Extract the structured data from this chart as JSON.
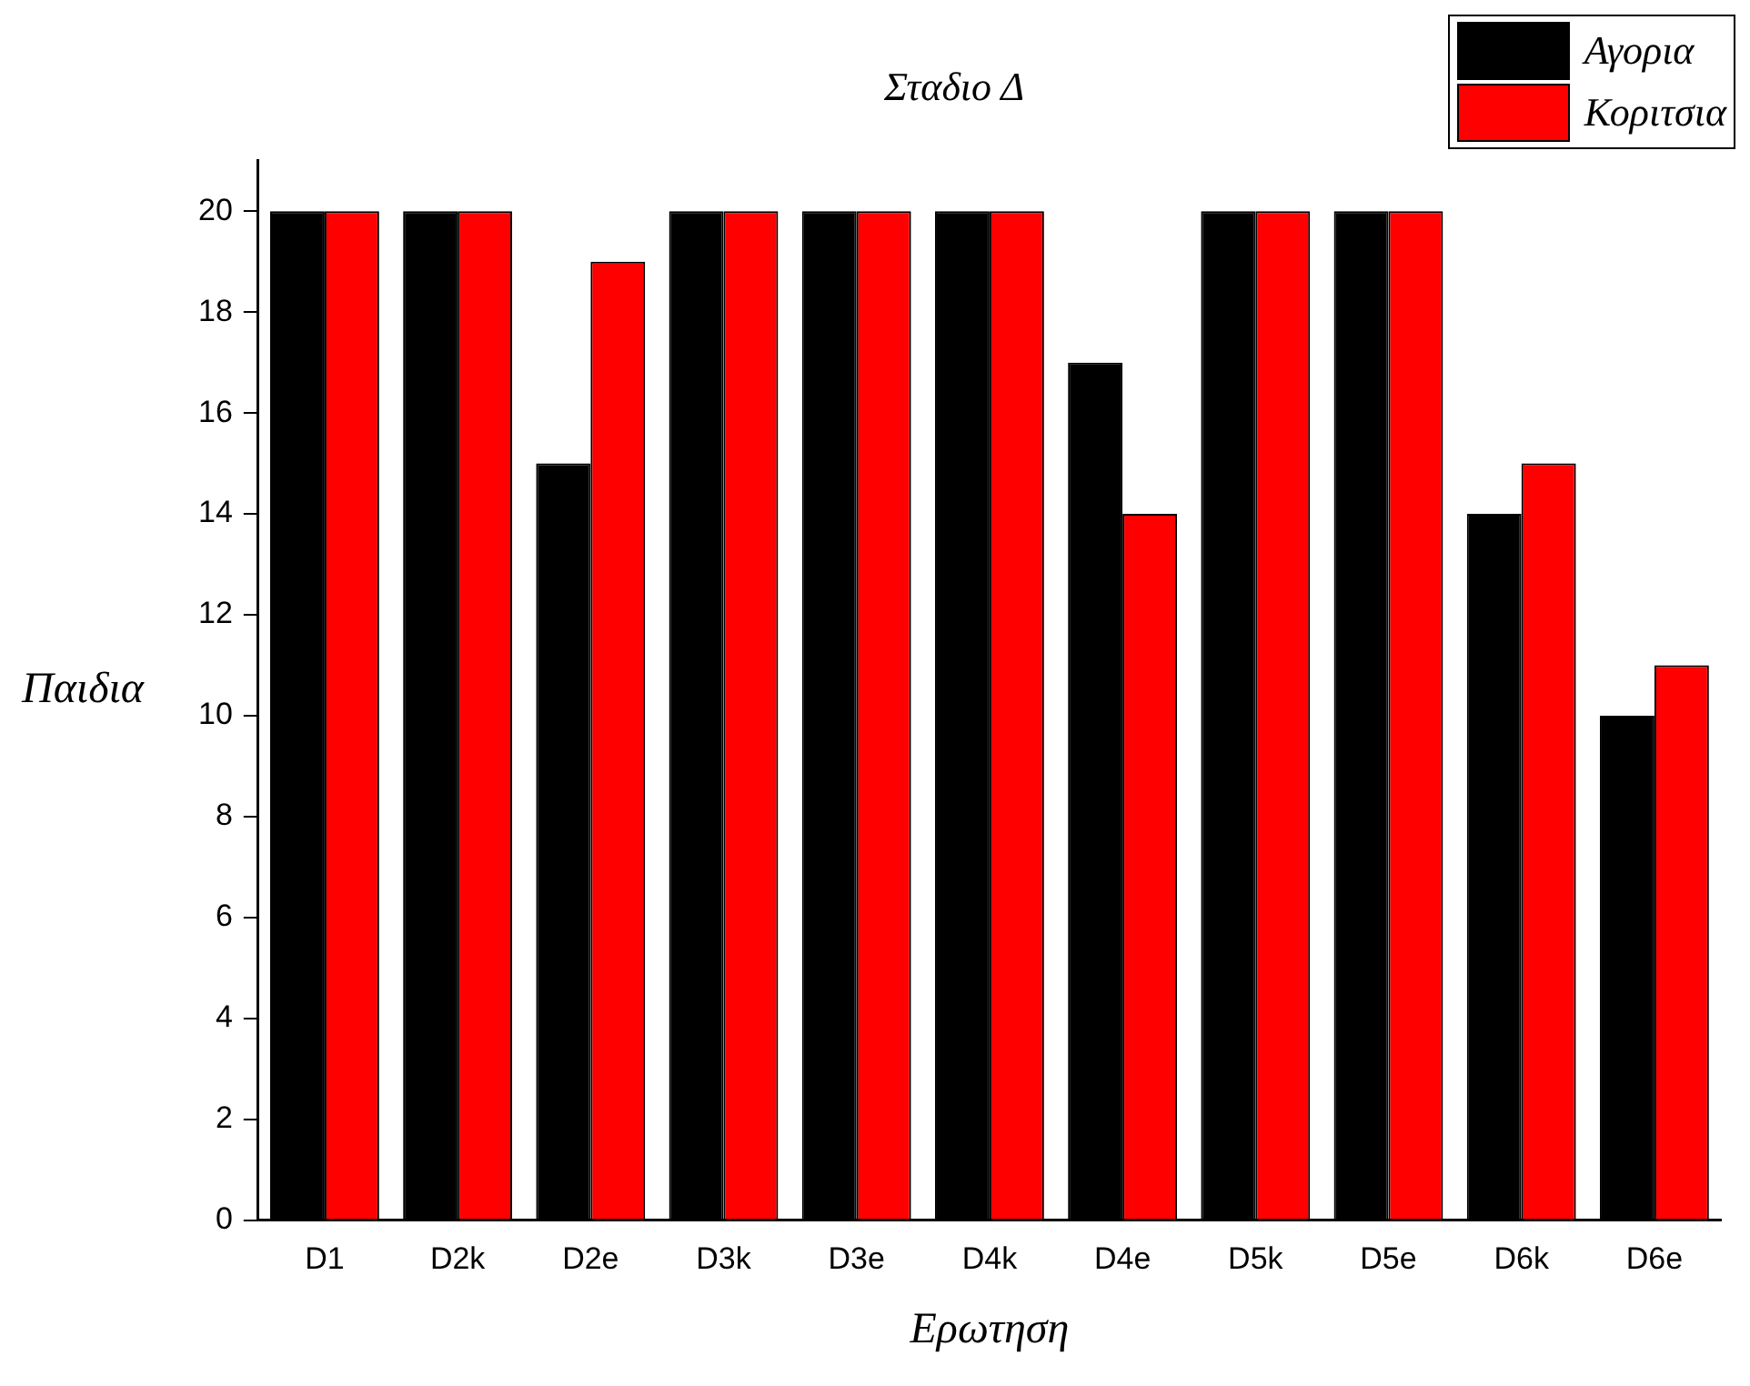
{
  "chart_data": {
    "type": "bar",
    "title": "Σταδιο Δ",
    "xlabel": "Ερωτηση",
    "ylabel": "Παιδια",
    "categories": [
      "D1",
      "D2k",
      "D2e",
      "D3k",
      "D3e",
      "D4k",
      "D4e",
      "D5k",
      "D5e",
      "D6k",
      "D6e"
    ],
    "series": [
      {
        "name": "Αγορια",
        "color": "#000000",
        "values": [
          20,
          20,
          15,
          20,
          20,
          20,
          17,
          20,
          20,
          14,
          10
        ]
      },
      {
        "name": "Κοριτσια",
        "color": "#ff0000",
        "values": [
          20,
          20,
          19,
          20,
          20,
          20,
          14,
          20,
          20,
          15,
          11
        ]
      }
    ],
    "ylim": [
      0,
      21
    ],
    "yticks": [
      0,
      2,
      4,
      6,
      8,
      10,
      12,
      14,
      16,
      18,
      20
    ],
    "grid": false,
    "legend": "top right"
  }
}
